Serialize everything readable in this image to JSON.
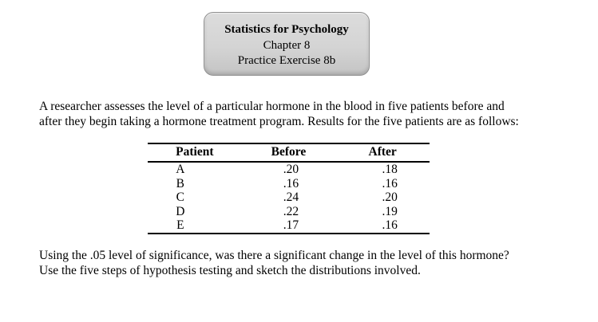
{
  "title_box": {
    "title": "Statistics for Psychology",
    "chapter": "Chapter 8",
    "exercise": "Practice Exercise 8b"
  },
  "intro": {
    "lines": [
      "A researcher assesses the level of a particular hormone in the blood in five patients before and",
      "after they begin taking a hormone treatment program. Results for the five patients are as follows:"
    ]
  },
  "table": {
    "columns": [
      "Patient",
      "Before",
      "After"
    ],
    "rows": [
      [
        "A",
        ".20",
        ".18"
      ],
      [
        "B",
        ".16",
        ".16"
      ],
      [
        "C",
        ".24",
        ".20"
      ],
      [
        "D",
        ".22",
        ".19"
      ],
      [
        "E",
        ".17",
        ".16"
      ]
    ]
  },
  "question": {
    "lines": [
      "Using the .05 level of significance, was there a significant change in the level of this hormone?",
      "Use the five steps of hypothesis testing and sketch the distributions involved."
    ]
  },
  "colors": {
    "page_bg": "#ffffff",
    "text": "#000000",
    "box_border": "#8f8f8f",
    "box_fill_top": "#dcdcdc",
    "box_fill_bottom": "#c4c4c4",
    "table_rule": "#000000"
  }
}
